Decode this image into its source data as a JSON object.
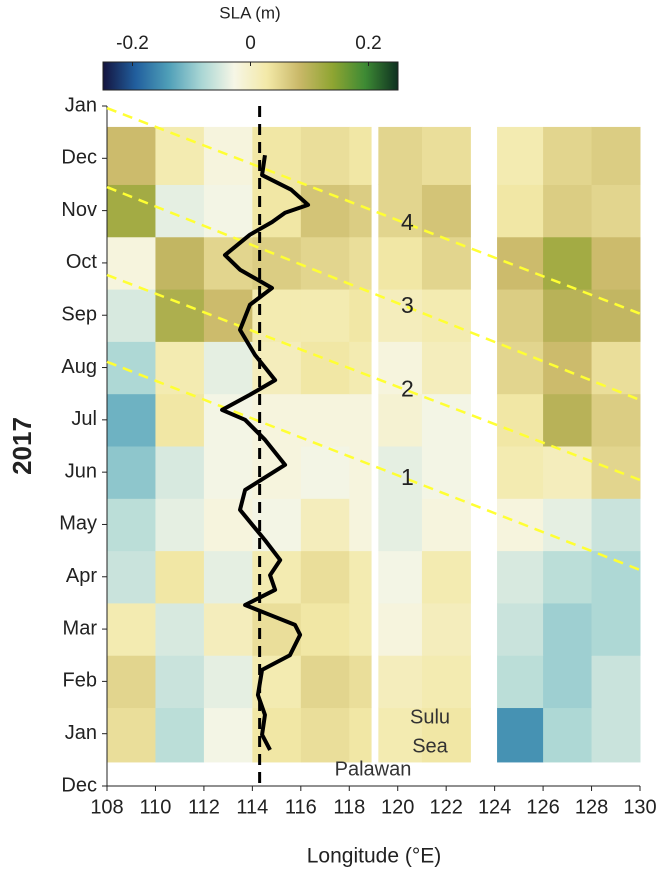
{
  "chart_data": {
    "type": "hovmoller",
    "colorbar": {
      "title": "SLA (m)",
      "clim": [
        -0.25,
        0.25
      ],
      "ticks": [
        -0.2,
        0,
        0.2
      ],
      "colormap": [
        "#14143f",
        "#215f9e",
        "#4f9fb8",
        "#a9d6d4",
        "#f6f6e6",
        "#f3e9a8",
        "#c9b868",
        "#8fa532",
        "#3d8a34",
        "#0e3020"
      ]
    },
    "xlabel": "Longitude (°E)",
    "ylabel": "2017",
    "xlim": [
      108,
      130
    ],
    "xticks": [
      108,
      110,
      112,
      114,
      116,
      118,
      120,
      122,
      124,
      126,
      128,
      130
    ],
    "ylim": [
      0,
      13
    ],
    "yticks": [
      {
        "value": 0,
        "label": "Dec"
      },
      {
        "value": 1,
        "label": "Jan"
      },
      {
        "value": 2,
        "label": "Feb"
      },
      {
        "value": 3,
        "label": "Mar"
      },
      {
        "value": 4,
        "label": "Apr"
      },
      {
        "value": 5,
        "label": "May"
      },
      {
        "value": 6,
        "label": "Jun"
      },
      {
        "value": 7,
        "label": "Jul"
      },
      {
        "value": 8,
        "label": "Aug"
      },
      {
        "value": 9,
        "label": "Sep"
      },
      {
        "value": 10,
        "label": "Oct"
      },
      {
        "value": 11,
        "label": "Nov"
      },
      {
        "value": 12,
        "label": "Dec"
      },
      {
        "value": 13,
        "label": "Jan"
      }
    ],
    "heatmap": {
      "lon_edges": [
        108,
        110,
        112,
        114,
        116,
        118,
        118.9,
        119.2,
        121,
        123,
        124.1,
        126,
        128,
        130
      ],
      "time_edges": [
        0.46,
        1.5,
        2.5,
        3.5,
        4.5,
        5.5,
        6.5,
        7.5,
        8.5,
        9.5,
        10.5,
        11.5,
        12.6
      ],
      "values": [
        [
          0.04,
          -0.07,
          -0.03,
          0.03,
          0.04,
          0.03,
          null,
          0.02,
          0.03,
          null,
          -0.15,
          -0.08,
          -0.06
        ],
        [
          0.05,
          -0.06,
          -0.04,
          0.02,
          0.05,
          0.04,
          null,
          0.01,
          0.02,
          null,
          -0.07,
          -0.09,
          -0.06
        ],
        [
          0.02,
          -0.05,
          0.01,
          0.04,
          0.03,
          0.02,
          null,
          -0.02,
          0.01,
          null,
          -0.06,
          -0.09,
          -0.08
        ],
        [
          -0.06,
          0.03,
          -0.04,
          0.02,
          0.04,
          0.02,
          null,
          -0.03,
          0.02,
          null,
          -0.05,
          -0.07,
          -0.08
        ],
        [
          -0.07,
          -0.04,
          -0.02,
          -0.03,
          0.01,
          -0.02,
          null,
          -0.04,
          -0.02,
          null,
          -0.02,
          -0.04,
          -0.06
        ],
        [
          -0.1,
          -0.05,
          -0.03,
          -0.02,
          -0.03,
          -0.02,
          null,
          -0.04,
          -0.03,
          null,
          0.02,
          0.01,
          0.05
        ],
        [
          -0.12,
          0.03,
          -0.03,
          -0.02,
          -0.02,
          -0.02,
          null,
          -0.01,
          -0.03,
          null,
          0.03,
          0.1,
          0.06
        ],
        [
          -0.08,
          0.02,
          -0.04,
          0.01,
          0.03,
          0.02,
          null,
          -0.02,
          0.01,
          null,
          0.05,
          0.08,
          0.04
        ],
        [
          -0.05,
          0.11,
          0.08,
          0.02,
          0.02,
          0.03,
          null,
          0.01,
          0.02,
          null,
          0.06,
          0.1,
          0.09
        ],
        [
          -0.02,
          0.09,
          0.05,
          0.06,
          0.05,
          0.04,
          null,
          0.03,
          0.05,
          null,
          0.08,
          0.12,
          0.08
        ],
        [
          0.12,
          -0.04,
          -0.03,
          0.03,
          0.07,
          0.06,
          null,
          0.05,
          0.07,
          null,
          0.03,
          0.06,
          0.05
        ],
        [
          0.08,
          0.02,
          -0.02,
          0.03,
          0.04,
          0.03,
          null,
          0.05,
          0.04,
          null,
          0.02,
          0.05,
          0.06
        ]
      ]
    },
    "series": [
      {
        "color": "#000000",
        "lon": [
          114.73,
          114.4,
          114.52,
          114.23,
          114.4,
          115.55,
          115.97,
          115.76,
          114.73,
          113.7,
          114.94,
          114.73,
          115.15,
          114.52,
          113.49,
          113.7,
          115.35,
          114.52,
          113.7,
          112.75,
          113.9,
          114.94,
          114.11,
          113.49,
          113.9,
          114.81,
          113.49,
          112.87,
          113.9,
          114.81,
          115.35,
          116.3,
          115.6,
          114.4,
          114.52
        ],
        "time": [
          0.69,
          0.98,
          1.36,
          1.74,
          2.22,
          2.5,
          2.89,
          3.08,
          3.27,
          3.46,
          3.75,
          4.03,
          4.32,
          4.7,
          5.28,
          5.66,
          6.14,
          6.62,
          7.0,
          7.19,
          7.48,
          7.76,
          8.24,
          8.72,
          9.2,
          9.52,
          9.87,
          10.15,
          10.54,
          10.78,
          10.96,
          11.11,
          11.4,
          11.68,
          12.06
        ]
      }
    ],
    "vline": {
      "lon": 114.3,
      "color": "#000000"
    },
    "trend_lines": [
      {
        "label": "1",
        "lon": [
          108,
          130
        ],
        "time": [
          8.11,
          4.13
        ]
      },
      {
        "label": "2",
        "lon": [
          108,
          130
        ],
        "time": [
          9.77,
          5.85
        ]
      },
      {
        "label": "3",
        "lon": [
          108,
          130
        ],
        "time": [
          11.45,
          7.38
        ]
      },
      {
        "label": "4",
        "lon": [
          108,
          130
        ],
        "time": [
          12.96,
          9.03
        ]
      }
    ],
    "trend_color": "#ffff33",
    "annotations": [
      "Sulu",
      "Sea",
      "Palawan"
    ]
  }
}
